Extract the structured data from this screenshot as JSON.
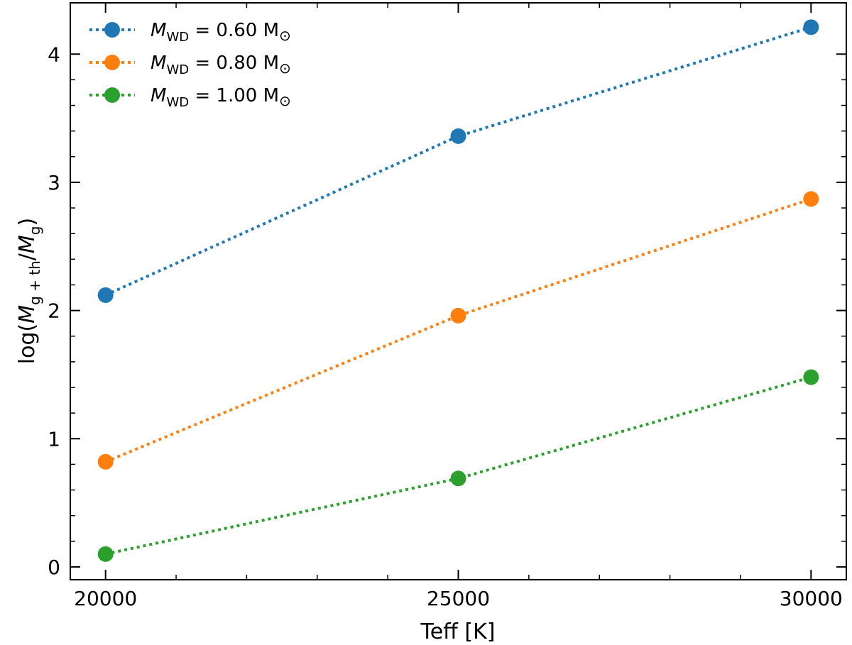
{
  "chart_data": {
    "type": "line",
    "title": "",
    "xlabel": "Teff [K]",
    "ylabel_parts": [
      "log(",
      "M",
      "g + th",
      "/",
      "M",
      "g",
      ")"
    ],
    "xlim": [
      19500,
      30500
    ],
    "ylim": [
      -0.1,
      4.4
    ],
    "xticks": [
      20000,
      25000,
      30000
    ],
    "xtick_labels": [
      "20000",
      "25000",
      "30000"
    ],
    "yticks": [
      0,
      1,
      2,
      3,
      4
    ],
    "ytick_labels": [
      "0",
      "1",
      "2",
      "3",
      "4"
    ],
    "x": [
      20000,
      25000,
      30000
    ],
    "grid": false,
    "legend_position": "top-left",
    "series": [
      {
        "name": "0.60",
        "legend_prefix": "M",
        "legend_sub": "WD",
        "legend_value": "= 0.60 M",
        "legend_sun": "⊙",
        "color": "#1f77b4",
        "values": [
          2.12,
          3.36,
          4.21
        ]
      },
      {
        "name": "0.80",
        "legend_prefix": "M",
        "legend_sub": "WD",
        "legend_value": "= 0.80 M",
        "legend_sun": "⊙",
        "color": "#ff7f0e",
        "values": [
          0.82,
          1.96,
          2.87
        ]
      },
      {
        "name": "1.00",
        "legend_prefix": "M",
        "legend_sub": "WD",
        "legend_value": "= 1.00 M",
        "legend_sun": "⊙",
        "color": "#2ca02c",
        "values": [
          0.1,
          0.69,
          1.48
        ]
      }
    ]
  }
}
